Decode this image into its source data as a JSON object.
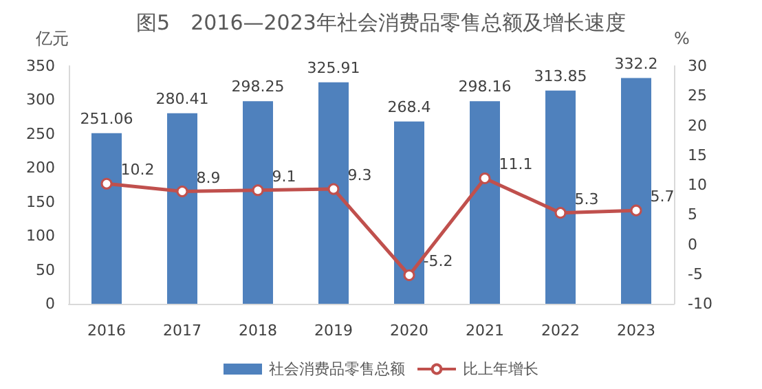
{
  "chart_data": {
    "type": "bar",
    "title": "图5　2016—2023年社会消费品零售总额及增长速度",
    "ylabel": "亿元",
    "y2label": "%",
    "categories": [
      "2016",
      "2017",
      "2018",
      "2019",
      "2020",
      "2021",
      "2022",
      "2023"
    ],
    "series": [
      {
        "name": "社会消费品零售总额",
        "color": "#4f81bd",
        "values": [
          251.06,
          280.41,
          298.25,
          325.91,
          268.4,
          298.16,
          313.85,
          332.2
        ]
      },
      {
        "name": "比上年增长",
        "type": "line",
        "axis": "y2",
        "color": "#c0504d",
        "marker": "circle",
        "values": [
          10.2,
          8.9,
          9.1,
          9.3,
          -5.2,
          11.1,
          5.3,
          5.7
        ]
      }
    ],
    "ylim": [
      0,
      350
    ],
    "yticks": [
      0,
      50,
      100,
      150,
      200,
      250,
      300,
      350
    ],
    "y2lim": [
      -10,
      30
    ],
    "y2ticks": [
      -10,
      -5,
      0,
      5,
      10,
      15,
      20,
      25,
      30
    ],
    "data_labels": true,
    "grid": false,
    "legend": "bottom"
  }
}
